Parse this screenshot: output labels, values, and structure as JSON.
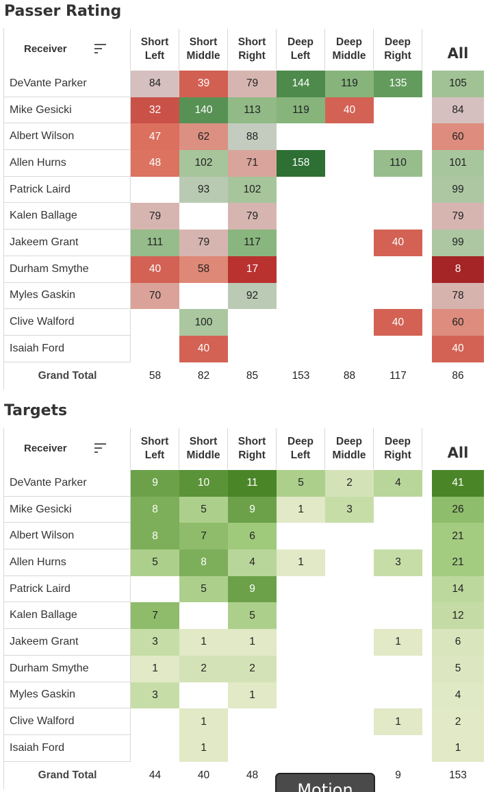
{
  "chart_data": [
    {
      "type": "heatmap",
      "title": "Passer Rating",
      "row_header": "Receiver",
      "columns": [
        "Short\nLeft",
        "Short\nMiddle",
        "Short\nRight",
        "Deep\nLeft",
        "Deep\nMiddle",
        "Deep\nRight"
      ],
      "all_label": "All",
      "total_label": "Grand Total",
      "color_scale": {
        "type": "diverging",
        "low": "#8b1a1f",
        "mid": "#c8c8c8",
        "high": "#2e7d32",
        "min": 0,
        "mid_value": 86,
        "max": 158
      },
      "rows": [
        {
          "name": "DeVante Parker",
          "values": [
            84,
            39,
            79,
            144,
            119,
            135
          ],
          "all": 105
        },
        {
          "name": "Mike Gesicki",
          "values": [
            32,
            140,
            113,
            119,
            40,
            null
          ],
          "all": 84
        },
        {
          "name": "Albert Wilson",
          "values": [
            47,
            62,
            88,
            null,
            null,
            null
          ],
          "all": 60
        },
        {
          "name": "Allen Hurns",
          "values": [
            48,
            102,
            71,
            158,
            null,
            110
          ],
          "all": 101
        },
        {
          "name": "Patrick Laird",
          "values": [
            null,
            93,
            102,
            null,
            null,
            null
          ],
          "all": 99
        },
        {
          "name": "Kalen Ballage",
          "values": [
            79,
            null,
            79,
            null,
            null,
            null
          ],
          "all": 79
        },
        {
          "name": "Jakeem Grant",
          "values": [
            111,
            79,
            117,
            null,
            null,
            40
          ],
          "all": 99
        },
        {
          "name": "Durham Smythe",
          "values": [
            40,
            58,
            17,
            null,
            null,
            null
          ],
          "all": 8
        },
        {
          "name": "Myles Gaskin",
          "values": [
            70,
            null,
            92,
            null,
            null,
            null
          ],
          "all": 78
        },
        {
          "name": "Clive Walford",
          "values": [
            null,
            100,
            null,
            null,
            null,
            40
          ],
          "all": 60
        },
        {
          "name": "Isaiah Ford",
          "values": [
            null,
            40,
            null,
            null,
            null,
            null
          ],
          "all": 40
        }
      ],
      "totals": [
        58,
        82,
        85,
        153,
        88,
        117
      ],
      "total_all": 86
    },
    {
      "type": "heatmap",
      "title": "Targets",
      "row_header": "Receiver",
      "columns": [
        "Short\nLeft",
        "Short\nMiddle",
        "Short\nRight",
        "Deep\nLeft",
        "Deep\nMiddle",
        "Deep\nRight"
      ],
      "all_label": "All",
      "total_label": "Grand Total",
      "color_scale": {
        "type": "sequential",
        "low": "#e3ecc7",
        "high": "#4f8a2a",
        "min": 1,
        "max": 11,
        "all_max": 41
      },
      "rows": [
        {
          "name": "DeVante Parker",
          "values": [
            9,
            10,
            11,
            5,
            2,
            4
          ],
          "all": 41
        },
        {
          "name": "Mike Gesicki",
          "values": [
            8,
            5,
            9,
            1,
            3,
            null
          ],
          "all": 26
        },
        {
          "name": "Albert Wilson",
          "values": [
            8,
            7,
            6,
            null,
            null,
            null
          ],
          "all": 21
        },
        {
          "name": "Allen Hurns",
          "values": [
            5,
            8,
            4,
            1,
            null,
            3
          ],
          "all": 21
        },
        {
          "name": "Patrick Laird",
          "values": [
            null,
            5,
            9,
            null,
            null,
            null
          ],
          "all": 14
        },
        {
          "name": "Kalen Ballage",
          "values": [
            7,
            null,
            5,
            null,
            null,
            null
          ],
          "all": 12
        },
        {
          "name": "Jakeem Grant",
          "values": [
            3,
            1,
            1,
            null,
            null,
            1
          ],
          "all": 6
        },
        {
          "name": "Durham Smythe",
          "values": [
            1,
            2,
            2,
            null,
            null,
            null
          ],
          "all": 5
        },
        {
          "name": "Myles Gaskin",
          "values": [
            3,
            null,
            1,
            null,
            null,
            null
          ],
          "all": 4
        },
        {
          "name": "Clive Walford",
          "values": [
            null,
            1,
            null,
            null,
            null,
            1
          ],
          "all": 2
        },
        {
          "name": "Isaiah Ford",
          "values": [
            null,
            1,
            null,
            null,
            null,
            null
          ],
          "all": 1
        }
      ],
      "totals": [
        44,
        40,
        48,
        null,
        null,
        9
      ],
      "total_all": 153
    }
  ],
  "overlay": {
    "motion_button_label": "Motion"
  }
}
